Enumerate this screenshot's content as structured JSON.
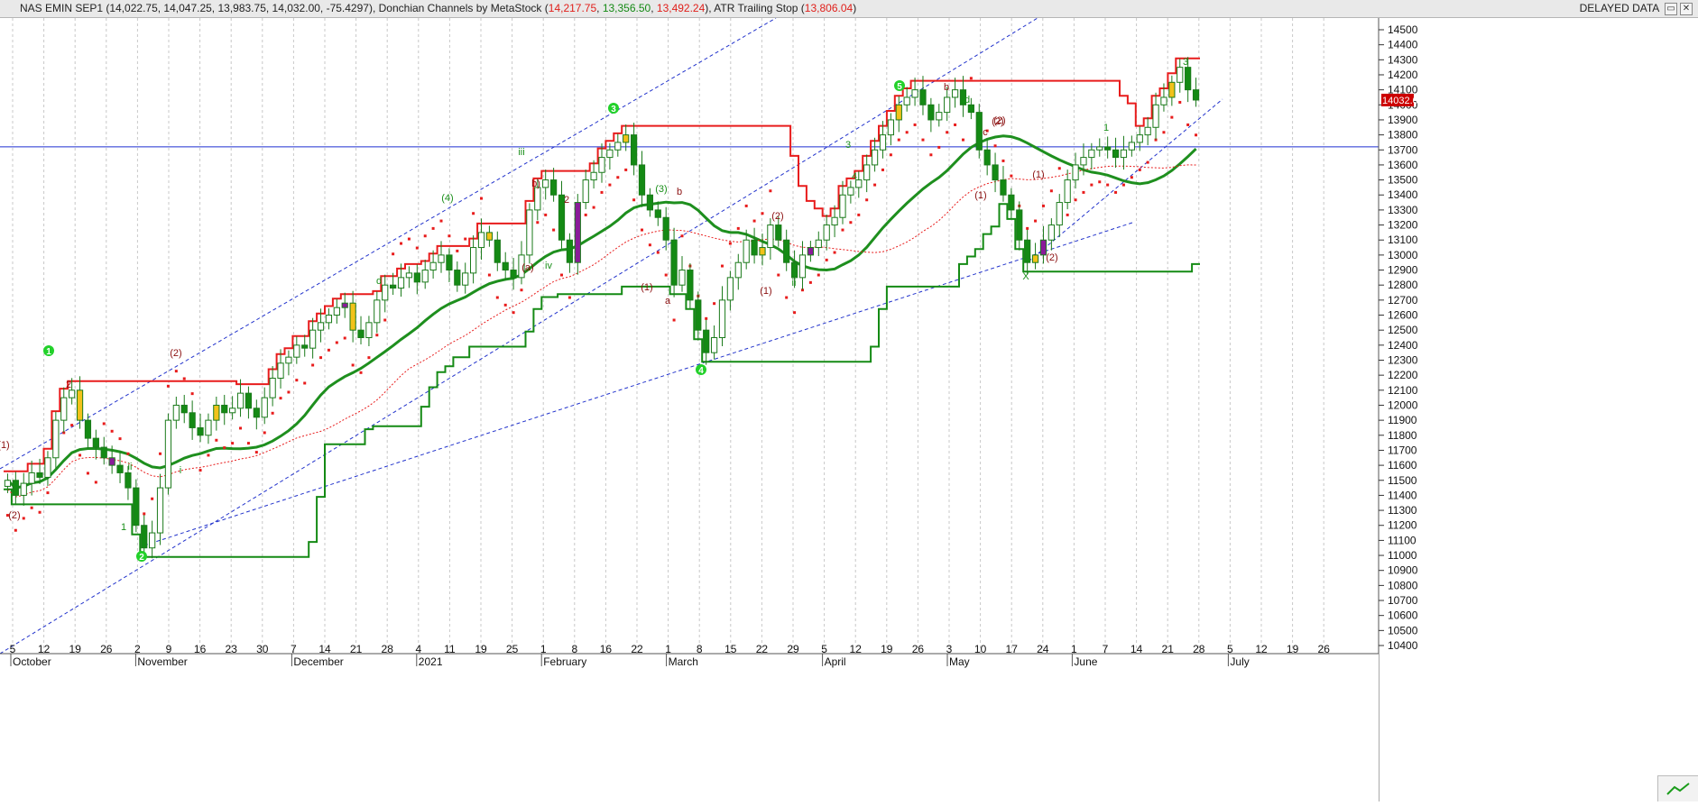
{
  "title_bar": {
    "instrument": "NAS EMIN SEP1",
    "ohlc": "(14,022.75, 14,047.25, 13,983.75, 14,032.00, -75.4297),",
    "indicator1_name": "Donchian Channels by MetaStock",
    "indicator1_open": "(",
    "indicator1_v1": "14,217.75",
    "indicator1_v2": "13,356.50",
    "indicator1_v3": "13,492.24",
    "indicator1_close": "),",
    "indicator2_name": "ATR Trailing Stop",
    "indicator2_open": "(",
    "indicator2_value": "13,806.04",
    "indicator2_close": ")",
    "status": "DELAYED DATA"
  },
  "price_axis": {
    "labels": [
      "14500",
      "14400",
      "14300",
      "14200",
      "14100",
      "14000",
      "13900",
      "13800",
      "13700",
      "13600",
      "13500",
      "13400",
      "13300",
      "13200",
      "13100",
      "13000",
      "12900",
      "12800",
      "12700",
      "12600",
      "12500",
      "12400",
      "12300",
      "12200",
      "12100",
      "12000",
      "11900",
      "11800",
      "11700",
      "11600",
      "11500",
      "11400",
      "11300",
      "11200",
      "11100",
      "11000",
      "10900",
      "10800",
      "10700",
      "10600",
      "10500",
      "10400"
    ],
    "last_price_tag": "14032.00"
  },
  "date_axis": {
    "days": [
      "5",
      "12",
      "19",
      "26",
      "2",
      "9",
      "16",
      "23",
      "30",
      "7",
      "14",
      "21",
      "28",
      "4",
      "11",
      "19",
      "25",
      "1",
      "8",
      "16",
      "22",
      "1",
      "8",
      "15",
      "22",
      "29",
      "5",
      "12",
      "19",
      "26",
      "3",
      "10",
      "17",
      "24",
      "1",
      "7",
      "14",
      "21",
      "28",
      "5",
      "12",
      "19",
      "26"
    ],
    "months": [
      "October",
      "November",
      "December",
      "2021",
      "February",
      "March",
      "April",
      "May",
      "June",
      "July"
    ]
  },
  "wave_labels": {
    "circled": [
      "1",
      "2",
      "3",
      "4",
      "5"
    ],
    "other": [
      "(1)",
      "(2)",
      "2",
      "1",
      "ii",
      "i",
      "(2)",
      "(1)",
      "(3)",
      "(4)",
      "iii",
      "iv",
      "(a)",
      "b)",
      "(2)",
      "b",
      "a",
      "(1)",
      "(2)",
      "ii",
      "(1)",
      "(2)",
      "b",
      "c",
      "d",
      "3",
      "4",
      "(1)",
      "(2)",
      "X",
      "1",
      "3",
      "d",
      "2"
    ]
  },
  "colors": {
    "donchian_upper": "#e81c1c",
    "donchian_lower": "#148a14",
    "ma_thick": "#1e8f1e",
    "atr_dots": "#e81c1c",
    "bull_candle": "#ffffff",
    "bear_candle": "#148a14",
    "channel_lines": "#2233cc",
    "grid": "#c8c8c8"
  },
  "chart_data": {
    "type": "candlestick",
    "y_range": [
      10350,
      14550
    ],
    "horizontal_level": 13720,
    "closes": [
      11500,
      11400,
      11480,
      11550,
      11520,
      11650,
      11900,
      12050,
      12100,
      11900,
      11780,
      11720,
      11650,
      11600,
      11550,
      11450,
      11200,
      11050,
      11150,
      11450,
      11900,
      12000,
      11950,
      11850,
      11800,
      11900,
      12000,
      11950,
      11980,
      12080,
      11980,
      11920,
      12050,
      12180,
      12280,
      12320,
      12400,
      12380,
      12500,
      12550,
      12600,
      12650,
      12680,
      12500,
      12450,
      12550,
      12700,
      12800,
      12780,
      12850,
      12880,
      12820,
      12900,
      12950,
      13000,
      12900,
      12800,
      12880,
      13050,
      13150,
      13100,
      12950,
      12900,
      12850,
      13000,
      13300,
      13450,
      13500,
      13400,
      13100,
      12950,
      13350,
      13500,
      13550,
      13650,
      13700,
      13750,
      13800,
      13600,
      13400,
      13300,
      13250,
      13100,
      12800,
      12900,
      12700,
      12500,
      12350,
      12450,
      12700,
      12850,
      12950,
      13100,
      13000,
      13050,
      13200,
      13100,
      12950,
      12850,
      13000,
      13050,
      13100,
      13200,
      13250,
      13400,
      13450,
      13500,
      13600,
      13700,
      13800,
      13900,
      14000,
      14050,
      14100,
      14000,
      13900,
      13950,
      14050,
      14100,
      14000,
      13950,
      13700,
      13600,
      13500,
      13400,
      13300,
      13100,
      12950,
      13000,
      13100,
      13200,
      13350,
      13500,
      13600,
      13650,
      13700,
      13720,
      13700,
      13650,
      13700,
      13750,
      13800,
      13850,
      14000,
      14050,
      14150,
      14250,
      14100,
      14032
    ]
  }
}
